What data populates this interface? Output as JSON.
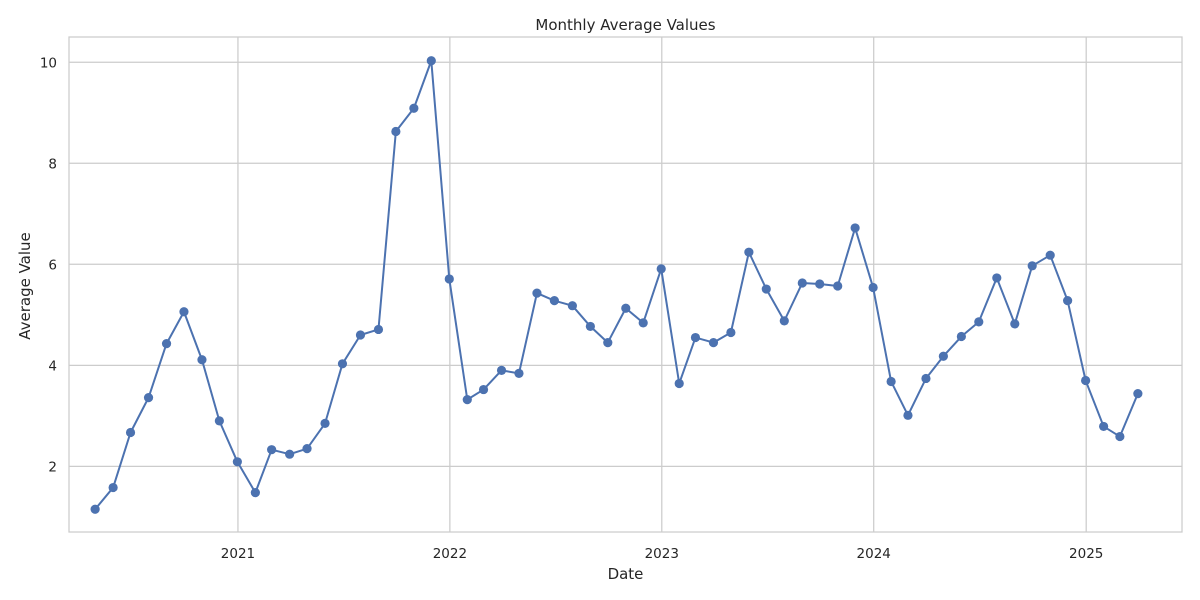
{
  "chart_data": {
    "type": "line",
    "title": "Monthly Average Values",
    "xlabel": "Date",
    "ylabel": "Average Value",
    "x_ticks": [
      "2021",
      "2022",
      "2023",
      "2024",
      "2025"
    ],
    "y_ticks": [
      2,
      4,
      6,
      8,
      10
    ],
    "ylim": [
      0.7,
      10.5
    ],
    "xlim": [
      "2020-03-16",
      "2025-06-15"
    ],
    "grid": true,
    "series": [
      {
        "color": "#4c72b0",
        "marker": "circle",
        "x": [
          "2020-04-30",
          "2020-05-31",
          "2020-06-30",
          "2020-07-31",
          "2020-08-31",
          "2020-09-30",
          "2020-10-31",
          "2020-11-30",
          "2020-12-31",
          "2021-01-31",
          "2021-02-28",
          "2021-03-31",
          "2021-04-30",
          "2021-05-31",
          "2021-06-30",
          "2021-07-31",
          "2021-08-31",
          "2021-09-30",
          "2021-10-31",
          "2021-11-30",
          "2021-12-31",
          "2022-01-31",
          "2022-02-28",
          "2022-03-31",
          "2022-04-30",
          "2022-05-31",
          "2022-06-30",
          "2022-07-31",
          "2022-08-31",
          "2022-09-30",
          "2022-10-31",
          "2022-11-30",
          "2022-12-31",
          "2023-01-31",
          "2023-02-28",
          "2023-03-31",
          "2023-04-30",
          "2023-05-31",
          "2023-06-30",
          "2023-07-31",
          "2023-08-31",
          "2023-09-30",
          "2023-10-31",
          "2023-11-30",
          "2023-12-31",
          "2024-01-31",
          "2024-02-29",
          "2024-03-31",
          "2024-04-30",
          "2024-05-31",
          "2024-06-30",
          "2024-07-31",
          "2024-08-31",
          "2024-09-30",
          "2024-10-31",
          "2024-11-30",
          "2024-12-31",
          "2025-01-31",
          "2025-02-28",
          "2025-03-31"
        ],
        "values": [
          1.15,
          1.58,
          2.67,
          3.36,
          4.43,
          5.06,
          4.11,
          2.9,
          2.09,
          1.48,
          2.33,
          2.24,
          2.35,
          2.85,
          4.03,
          4.6,
          4.71,
          8.63,
          9.09,
          10.03,
          5.71,
          3.32,
          3.52,
          3.9,
          3.84,
          5.43,
          5.28,
          5.18,
          4.77,
          4.45,
          5.13,
          4.84,
          5.91,
          3.64,
          4.55,
          4.45,
          4.65,
          6.24,
          5.51,
          4.88,
          5.63,
          5.61,
          5.57,
          6.72,
          5.54,
          3.68,
          3.01,
          3.74,
          4.18,
          4.57,
          4.86,
          5.73,
          4.82,
          5.97,
          6.18,
          5.28,
          3.7,
          2.79,
          2.59,
          3.44
        ]
      }
    ]
  }
}
